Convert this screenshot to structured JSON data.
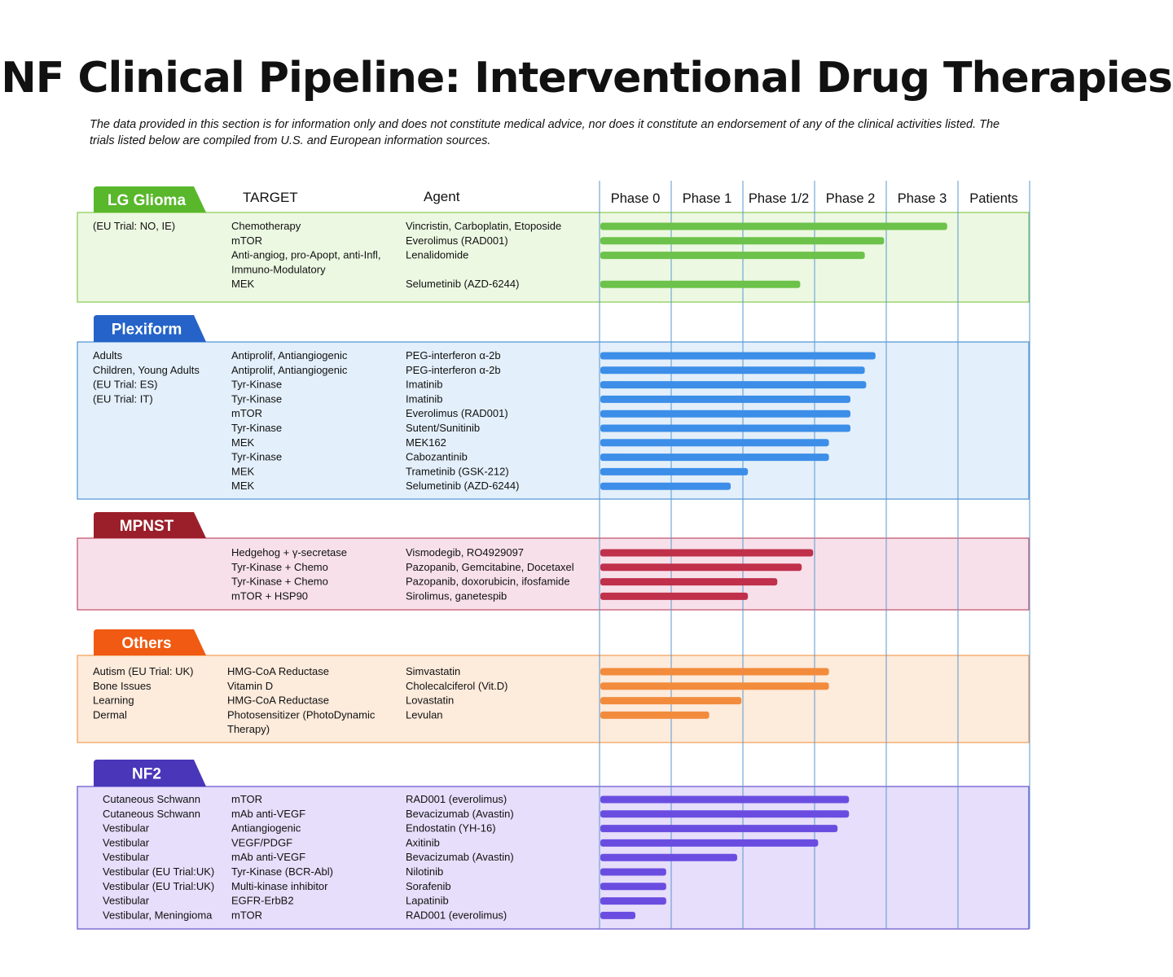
{
  "title": "NF Clinical Pipeline: Interventional Drug Therapies",
  "disclaimer": "The data provided in this section is for information only and does not constitute medical advice, nor does it constitute an endorsement of any of the clinical activities listed.  The trials listed below are compiled from U.S. and European information sources.",
  "chart_data": {
    "type": "bar",
    "orientation": "horizontal",
    "headers": {
      "target": "TARGET",
      "agent": "Agent"
    },
    "phases": [
      "Phase 0",
      "Phase 1",
      "Phase 1/2",
      "Phase 2",
      "Phase 3",
      "Patients"
    ],
    "value_units": "phase position (0 = start of Phase 0 column, each phase column = 1 unit)",
    "xlim": [
      0,
      6
    ],
    "grid": true,
    "sections": [
      {
        "name": "LG Glioma",
        "color": "#6cc24a",
        "tab_color": "#59b72b",
        "bg_color": "#ecf8e2",
        "border_color": "#8fce5c",
        "notes": [
          "(EU Trial: NO, IE)"
        ],
        "targets": [
          "Chemotherapy",
          "mTOR",
          "Anti-angiog, pro-Apopt, anti-Infl,",
          "Immuno-Modulatory",
          "MEK"
        ],
        "agents": [
          "Vincristin, Carboplatin, Etoposide",
          "Everolimus (RAD001)",
          "Lenalidomide",
          "",
          "Selumetinib (AZD-6244)"
        ],
        "values": [
          4.85,
          3.97,
          3.7,
          null,
          2.8
        ]
      },
      {
        "name": "Plexiform",
        "color": "#3c8ee8",
        "tab_color": "#2563c9",
        "bg_color": "#e3effa",
        "border_color": "#5b9bd8",
        "notes": [
          "Adults",
          "Children, Young Adults",
          "(EU Trial: ES)",
          "(EU Trial: IT)"
        ],
        "targets": [
          "Antiprolif, Antiangiogenic",
          "Antiprolif, Antiangiogenic",
          "Tyr-Kinase",
          "Tyr-Kinase",
          "mTOR",
          "Tyr-Kinase",
          "MEK",
          "Tyr-Kinase",
          "MEK",
          "MEK"
        ],
        "agents": [
          "PEG-interferon α-2b",
          "PEG-interferon α-2b",
          "Imatinib",
          "Imatinib",
          "Everolimus (RAD001)",
          "Sutent/Sunitinib",
          "MEK162",
          "Cabozantinib",
          "Trametinib (GSK-212)",
          "Selumetinib (AZD-6244)"
        ],
        "values": [
          3.85,
          3.7,
          3.72,
          3.5,
          3.5,
          3.5,
          3.2,
          3.2,
          2.07,
          1.83
        ]
      },
      {
        "name": "MPNST",
        "color": "#c0304a",
        "tab_color": "#9b1f2a",
        "bg_color": "#f7e0ea",
        "border_color": "#c65a72",
        "notes": [],
        "targets": [
          "Hedgehog + γ-secretase",
          "Tyr-Kinase + Chemo",
          "Tyr-Kinase + Chemo",
          "mTOR + HSP90"
        ],
        "agents": [
          "Vismodegib, RO4929097",
          "Pazopanib, Gemcitabine, Docetaxel",
          "Pazopanib, doxorubicin, ifosfamide",
          "Sirolimus, ganetespib"
        ],
        "values": [
          2.98,
          2.82,
          2.48,
          2.07
        ]
      },
      {
        "name": "Others",
        "color": "#f28c3c",
        "tab_color": "#f05a12",
        "bg_color": "#fdebdc",
        "border_color": "#f2a45f",
        "notes": [
          "Autism (EU Trial: UK)",
          "Bone Issues",
          "Learning",
          "Dermal"
        ],
        "targets": [
          "HMG-CoA Reductase",
          "Vitamin D",
          "HMG-CoA Reductase",
          "Photosensitizer (PhotoDynamic",
          "Therapy)"
        ],
        "agents": [
          "Simvastatin",
          "Cholecalciferol (Vit.D)",
          "Lovastatin",
          "Levulan",
          ""
        ],
        "values": [
          3.2,
          3.2,
          1.98,
          1.53,
          null
        ]
      },
      {
        "name": "NF2",
        "color": "#6a4de0",
        "tab_color": "#4a36b8",
        "bg_color": "#e6defa",
        "border_color": "#6f5ccf",
        "notes": [
          "Cutaneous Schwann",
          "Cutaneous Schwann",
          "Vestibular",
          "Vestibular",
          "Vestibular",
          "Vestibular (EU Trial:UK)",
          "Vestibular (EU Trial:UK)",
          "Vestibular",
          "Vestibular, Meningioma"
        ],
        "targets": [
          "mTOR",
          "mAb anti-VEGF",
          "Antiangiogenic",
          "VEGF/PDGF",
          "mAb anti-VEGF",
          "Tyr-Kinase (BCR-Abl)",
          "Multi-kinase inhibitor",
          "EGFR-ErbB2",
          "mTOR"
        ],
        "agents": [
          "RAD001 (everolimus)",
          "Bevacizumab (Avastin)",
          "Endostatin (YH-16)",
          "Axitinib",
          "Bevacizumab (Avastin)",
          "Nilotinib",
          "Sorafenib",
          "Lapatinib",
          "RAD001 (everolimus)"
        ],
        "values": [
          3.48,
          3.48,
          3.32,
          3.05,
          1.92,
          0.93,
          0.93,
          0.93,
          0.5
        ]
      }
    ]
  }
}
